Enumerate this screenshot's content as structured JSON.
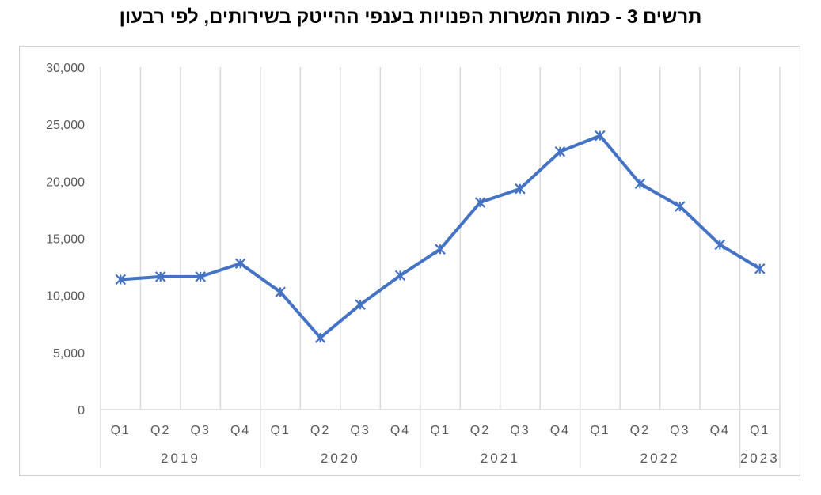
{
  "title": "תרשים 3 - כמות המשרות הפנויות בענפי ההייטק בשירותים, לפי רבעון",
  "chart_data": {
    "type": "line",
    "title": "תרשים 3 - כמות המשרות הפנויות בענפי ההייטק בשירותים, לפי רבעון",
    "xlabel": "",
    "ylabel": "",
    "ylim": [
      0,
      30000
    ],
    "yticks": [
      0,
      5000,
      10000,
      15000,
      20000,
      25000,
      30000
    ],
    "ytick_labels": [
      "0",
      "5,000",
      "10,000",
      "15,000",
      "20,000",
      "25,000",
      "30,000"
    ],
    "grid": "vertical",
    "legend": "none",
    "line_color": "#4472c4",
    "marker": "asterisk",
    "categories": [
      "Q1",
      "Q2",
      "Q3",
      "Q4",
      "Q1",
      "Q2",
      "Q3",
      "Q4",
      "Q1",
      "Q2",
      "Q3",
      "Q4",
      "Q1",
      "Q2",
      "Q3",
      "Q4",
      "Q1"
    ],
    "year_groups": [
      {
        "label": "2019",
        "count": 4
      },
      {
        "label": "2020",
        "count": 4
      },
      {
        "label": "2021",
        "count": 4
      },
      {
        "label": "2022",
        "count": 4
      },
      {
        "label": "2023",
        "count": 1
      }
    ],
    "series": [
      {
        "values": [
          11400,
          11650,
          11650,
          12800,
          10300,
          6300,
          9200,
          11750,
          14050,
          18150,
          19350,
          22600,
          24000,
          19800,
          17800,
          14450,
          12350
        ]
      }
    ]
  }
}
